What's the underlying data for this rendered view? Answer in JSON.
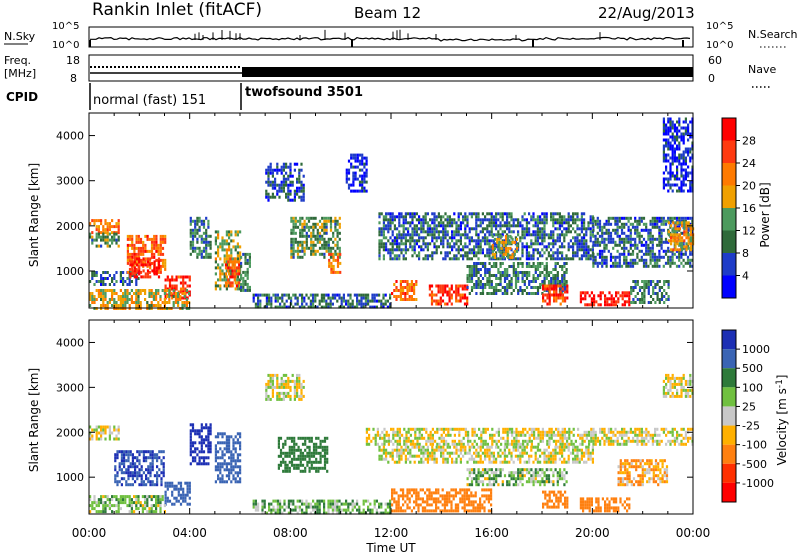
{
  "header": {
    "title": "Rankin Inlet (fitACF)",
    "beam": "Beam 12",
    "date": "22/Aug/2013"
  },
  "nsky_panel": {
    "left_label": "N.Sky",
    "right_label": "N.Search",
    "left_ticks": [
      "10^5",
      "10^0"
    ],
    "right_ticks": [
      "10^5",
      "10^0"
    ]
  },
  "freq_panel": {
    "left_label_1": "Freq.",
    "left_label_2": "[MHz]",
    "right_label": "Nave",
    "left_ticks": [
      "18",
      "8"
    ],
    "right_ticks": [
      "60",
      "0"
    ]
  },
  "cpid_panel": {
    "label": "CPID",
    "modes": [
      {
        "name": "normal (fast) 151",
        "start_hour": 0,
        "end_hour": 6.0
      },
      {
        "name": "twofsound 3501",
        "start_hour": 6.0,
        "end_hour": 24
      }
    ]
  },
  "colors": {
    "power": [
      "#0000ff",
      "#1e3cc8",
      "#2f6a3a",
      "#4c9a5e",
      "#f0a000",
      "#ff7a00",
      "#ff3a10",
      "#ff0000"
    ],
    "velocity": [
      "#1c2fb4",
      "#3a64b4",
      "#2e7a3a",
      "#70c040",
      "#c8c8c8",
      "#ffb000",
      "#ff8010",
      "#ff3000",
      "#ff0000"
    ]
  },
  "chart_data": [
    {
      "type": "heatmap",
      "name": "power",
      "ylabel": "Slant Range [km]",
      "xlabel": "Time UT",
      "xlim": [
        0,
        24
      ],
      "ylim": [
        180,
        4500
      ],
      "x_ticks": [
        "00:00",
        "04:00",
        "08:00",
        "12:00",
        "16:00",
        "20:00",
        "00:00"
      ],
      "y_ticks": [
        "1000",
        "2000",
        "3000",
        "4000"
      ],
      "colorbar": {
        "label": "Power [dB]",
        "ticks": [
          "4",
          "8",
          "12",
          "16",
          "20",
          "24",
          "28"
        ],
        "range": [
          0,
          30
        ]
      },
      "regions": [
        {
          "t": [
            0.0,
            1.2
          ],
          "r": [
            1850,
            2150
          ],
          "level": 20
        },
        {
          "t": [
            0.0,
            1.2
          ],
          "r": [
            1550,
            1850
          ],
          "level": 12
        },
        {
          "t": [
            0.0,
            2.0
          ],
          "r": [
            700,
            1000
          ],
          "level": 8
        },
        {
          "t": [
            1.5,
            3.0
          ],
          "r": [
            1000,
            1800
          ],
          "level": 22
        },
        {
          "t": [
            1.6,
            2.8
          ],
          "r": [
            900,
            1300
          ],
          "level": 27
        },
        {
          "t": [
            3.0,
            4.0
          ],
          "r": [
            400,
            900
          ],
          "level": 26
        },
        {
          "t": [
            4.0,
            4.8
          ],
          "r": [
            1300,
            2200
          ],
          "level": 10
        },
        {
          "t": [
            5.0,
            6.0
          ],
          "r": [
            600,
            1900
          ],
          "level": 14
        },
        {
          "t": [
            5.4,
            6.0
          ],
          "r": [
            700,
            1300
          ],
          "level": 24
        },
        {
          "t": [
            0.0,
            4.0
          ],
          "r": [
            200,
            600
          ],
          "level": 16
        },
        {
          "t": [
            6.0,
            6.4
          ],
          "r": [
            600,
            1400
          ],
          "level": 10
        },
        {
          "t": [
            7.0,
            8.5
          ],
          "r": [
            2600,
            3400
          ],
          "level": 6
        },
        {
          "t": [
            8.0,
            10.0
          ],
          "r": [
            1300,
            2200
          ],
          "level": 12
        },
        {
          "t": [
            9.5,
            10.0
          ],
          "r": [
            1000,
            1400
          ],
          "level": 20
        },
        {
          "t": [
            6.5,
            12.0
          ],
          "r": [
            200,
            500
          ],
          "level": 8
        },
        {
          "t": [
            10.2,
            11.0
          ],
          "r": [
            2800,
            3600
          ],
          "level": 4
        },
        {
          "t": [
            11.5,
            20.0
          ],
          "r": [
            1300,
            2300
          ],
          "level": 8
        },
        {
          "t": [
            12.0,
            13.0
          ],
          "r": [
            400,
            800
          ],
          "level": 22
        },
        {
          "t": [
            13.5,
            15.0
          ],
          "r": [
            300,
            700
          ],
          "level": 26
        },
        {
          "t": [
            15.0,
            19.0
          ],
          "r": [
            500,
            1200
          ],
          "level": 10
        },
        {
          "t": [
            16.0,
            17.0
          ],
          "r": [
            1300,
            1800
          ],
          "level": 16
        },
        {
          "t": [
            18.0,
            19.0
          ],
          "r": [
            300,
            700
          ],
          "level": 24
        },
        {
          "t": [
            19.5,
            21.5
          ],
          "r": [
            250,
            550
          ],
          "level": 28
        },
        {
          "t": [
            20.0,
            24.0
          ],
          "r": [
            1100,
            2200
          ],
          "level": 8
        },
        {
          "t": [
            21.5,
            23.0
          ],
          "r": [
            300,
            800
          ],
          "level": 10
        },
        {
          "t": [
            23.0,
            24.0
          ],
          "r": [
            1500,
            2100
          ],
          "level": 18
        },
        {
          "t": [
            22.8,
            24.0
          ],
          "r": [
            2800,
            4400
          ],
          "level": 4
        }
      ]
    },
    {
      "type": "heatmap",
      "name": "velocity",
      "ylabel": "Slant Range [km]",
      "xlabel": "Time UT",
      "xlim": [
        0,
        24
      ],
      "ylim": [
        180,
        4500
      ],
      "x_ticks": [
        "00:00",
        "04:00",
        "08:00",
        "12:00",
        "16:00",
        "20:00",
        "00:00"
      ],
      "y_ticks": [
        "1000",
        "2000",
        "3000",
        "4000"
      ],
      "colorbar": {
        "label": "Velocity [m s^-1]",
        "ticks": [
          "1000",
          "500",
          "100",
          "25",
          "-25",
          "-100",
          "-500",
          "-1000"
        ],
        "range": [
          -1000,
          1000
        ]
      },
      "regions": [
        {
          "t": [
            0.0,
            1.2
          ],
          "r": [
            1850,
            2150
          ],
          "level": 0
        },
        {
          "t": [
            1.0,
            3.0
          ],
          "r": [
            800,
            1600
          ],
          "level": 800
        },
        {
          "t": [
            3.0,
            4.0
          ],
          "r": [
            400,
            900
          ],
          "level": 500
        },
        {
          "t": [
            4.0,
            4.8
          ],
          "r": [
            1300,
            2200
          ],
          "level": 1000
        },
        {
          "t": [
            5.0,
            6.0
          ],
          "r": [
            900,
            2000
          ],
          "level": 600
        },
        {
          "t": [
            0.0,
            3.0
          ],
          "r": [
            200,
            600
          ],
          "level": 60
        },
        {
          "t": [
            7.0,
            8.5
          ],
          "r": [
            2700,
            3300
          ],
          "level": 0
        },
        {
          "t": [
            7.5,
            9.5
          ],
          "r": [
            1100,
            1900
          ],
          "level": 300
        },
        {
          "t": [
            6.5,
            12.0
          ],
          "r": [
            200,
            500
          ],
          "level": 80
        },
        {
          "t": [
            11.0,
            24.0
          ],
          "r": [
            1750,
            2100
          ],
          "level": 0
        },
        {
          "t": [
            11.5,
            20.0
          ],
          "r": [
            1300,
            1700
          ],
          "level": 0
        },
        {
          "t": [
            12.0,
            16.0
          ],
          "r": [
            250,
            750
          ],
          "level": -300
        },
        {
          "t": [
            15.0,
            19.0
          ],
          "r": [
            800,
            1200
          ],
          "level": 60
        },
        {
          "t": [
            18.0,
            19.0
          ],
          "r": [
            300,
            700
          ],
          "level": -200
        },
        {
          "t": [
            19.5,
            21.5
          ],
          "r": [
            250,
            550
          ],
          "level": -300
        },
        {
          "t": [
            21.0,
            23.0
          ],
          "r": [
            800,
            1400
          ],
          "level": -80
        },
        {
          "t": [
            22.8,
            24.0
          ],
          "r": [
            2800,
            3300
          ],
          "level": 0
        }
      ]
    }
  ]
}
